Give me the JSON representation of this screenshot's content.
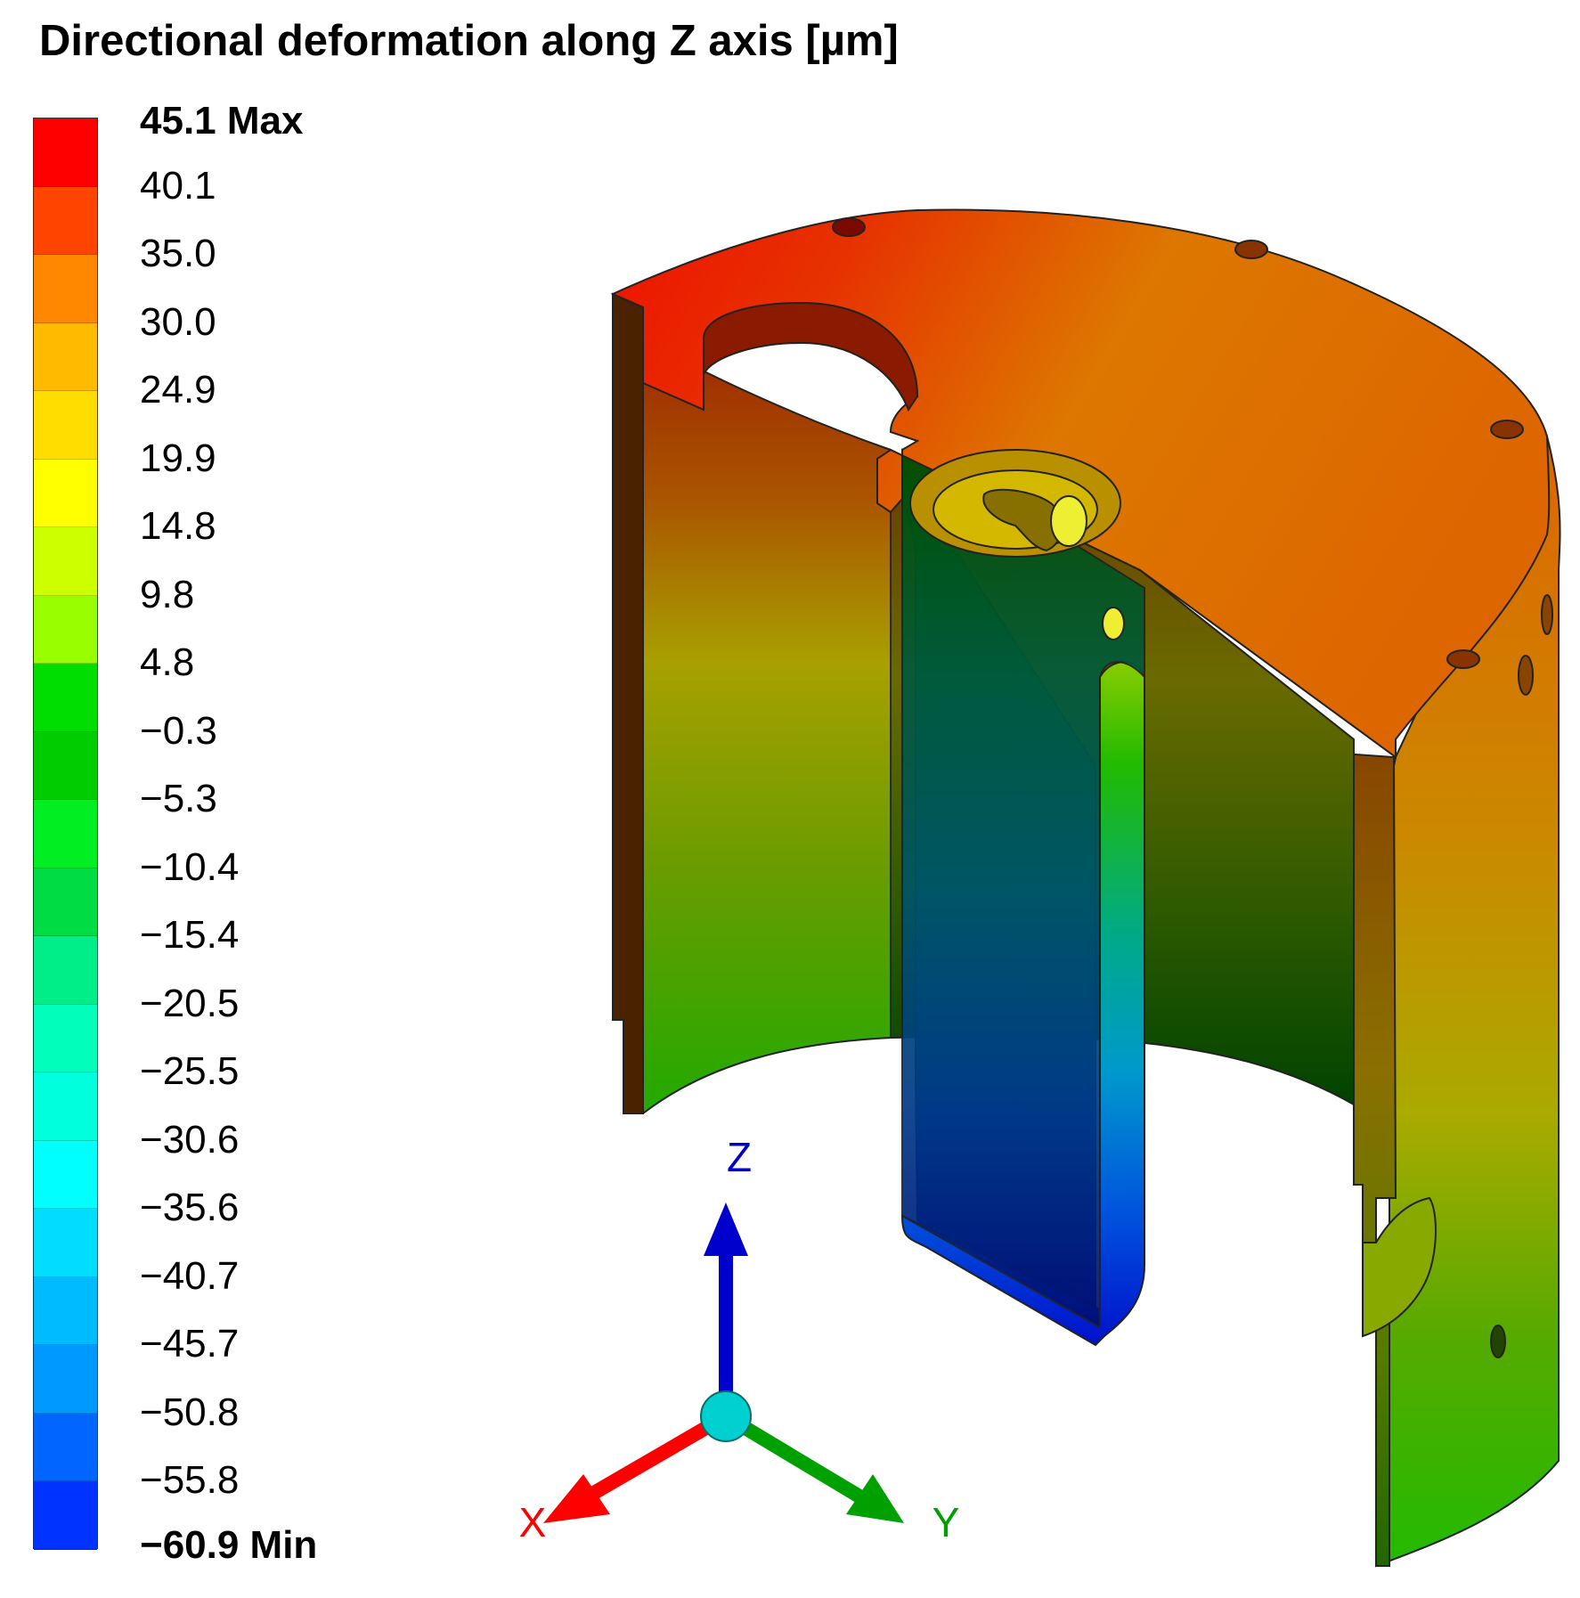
{
  "title": "Directional deformation along Z axis [µm]",
  "legend": {
    "max_label": "45.1 Max",
    "min_label": "−60.9 Min",
    "ticks": [
      "45.1 Max",
      "40.1",
      "35.0",
      "30.0",
      "24.9",
      "19.9",
      "14.8",
      "9.8",
      "4.8",
      "−0.3",
      "−5.3",
      "−10.4",
      "−15.4",
      "−20.5",
      "−25.5",
      "−30.6",
      "−35.6",
      "−40.7",
      "−45.7",
      "−50.8",
      "−55.8",
      "−60.9 Min"
    ],
    "band_colors": [
      "#ff0000",
      "#ff4400",
      "#ff8800",
      "#ffbb00",
      "#ffdd00",
      "#ffff00",
      "#ccff00",
      "#99ff00",
      "#00dd00",
      "#00cc00",
      "#00ee22",
      "#00dd44",
      "#00ee88",
      "#00ffbb",
      "#00ffdd",
      "#00ffff",
      "#00ddff",
      "#00bbff",
      "#0099ff",
      "#0066ff",
      "#0033ff",
      "#0000ff"
    ]
  },
  "triad": {
    "x_label": "X",
    "y_label": "Y",
    "z_label": "Z",
    "x_color": "#ff0000",
    "y_color": "#00a000",
    "z_color": "#0000cc",
    "origin_color": "#00d0d0"
  }
}
